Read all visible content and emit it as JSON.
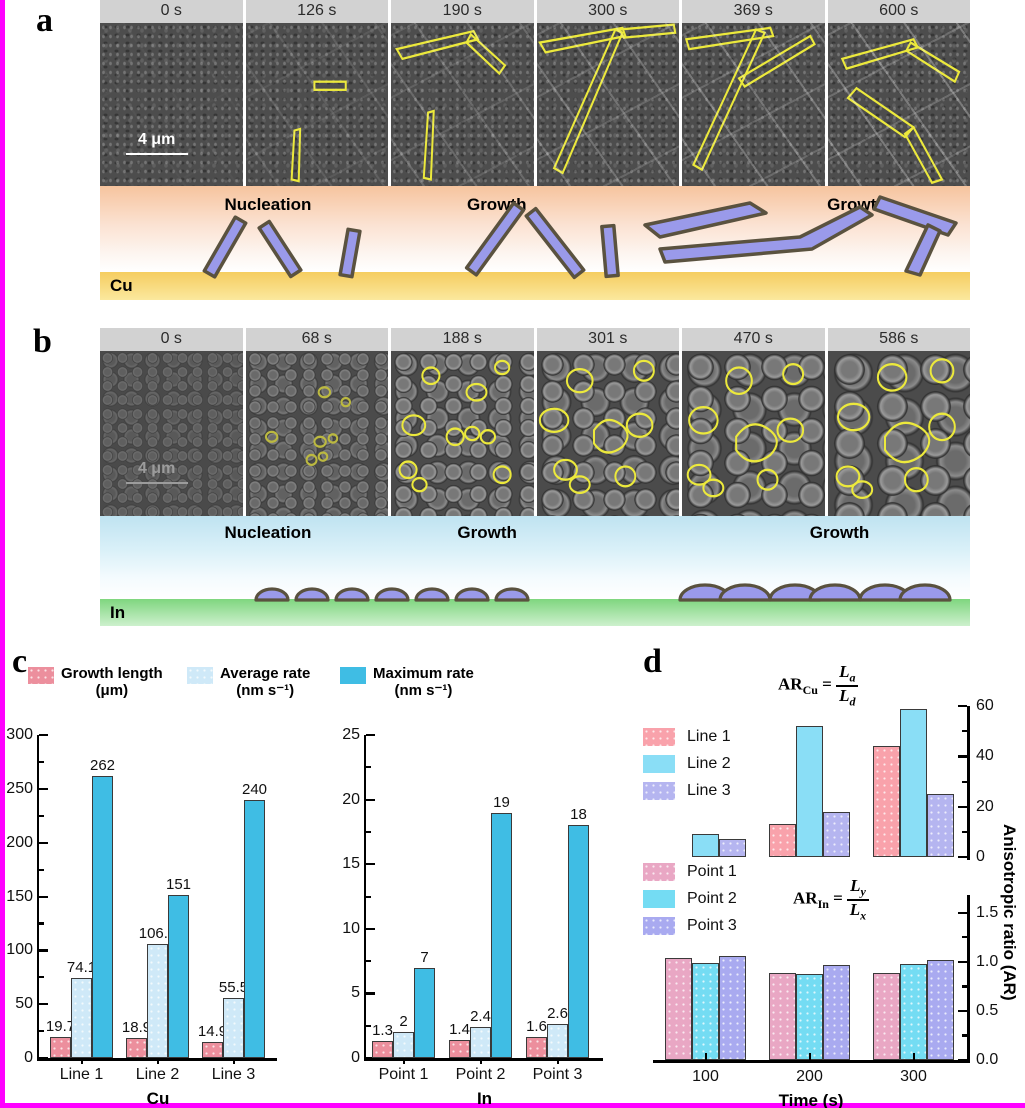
{
  "figure": {
    "border_color": "#ff00ff"
  },
  "panels": {
    "a": {
      "label": "a",
      "times": [
        "0 s",
        "126 s",
        "190 s",
        "300 s",
        "369 s",
        "600 s"
      ],
      "scale_bar": "4 μm",
      "phases": [
        "Nucleation",
        "Growth",
        "Growth"
      ],
      "substrate": "Cu"
    },
    "b": {
      "label": "b",
      "times": [
        "0 s",
        "68 s",
        "188 s",
        "301 s",
        "470 s",
        "586 s"
      ],
      "scale_bar": "4 μm",
      "phases": [
        "Nucleation",
        "Growth",
        "Growth"
      ],
      "substrate": "In"
    },
    "c": {
      "label": "c",
      "legend": [
        {
          "name": "Growth length",
          "unit": "(μm)",
          "color": "#ec8f9d"
        },
        {
          "name": "Average rate",
          "unit": "(nm s⁻¹)",
          "color": "#cfe9f8"
        },
        {
          "name": "Maximum rate",
          "unit": "(nm s⁻¹)",
          "color": "#3fbde4"
        }
      ]
    },
    "d": {
      "label": "d",
      "legend_top": [
        {
          "name": "Line 1",
          "color": "#f9a2ab"
        },
        {
          "name": "Line 2",
          "color": "#8adef6"
        },
        {
          "name": "Line 3",
          "color": "#b5b5f0"
        }
      ],
      "legend_bottom": [
        {
          "name": "Point 1",
          "color": "#e9a7c4"
        },
        {
          "name": "Point 2",
          "color": "#74dcf3"
        },
        {
          "name": "Point 3",
          "color": "#a9aaf0"
        }
      ],
      "formula_top": {
        "lhs": "AR",
        "lhs_sub": "Cu",
        "eq": "=",
        "num": "L",
        "num_sub": "a",
        "den": "L",
        "den_sub": "d"
      },
      "formula_bottom": {
        "lhs": "AR",
        "lhs_sub": "In",
        "eq": "=",
        "num": "L",
        "num_sub": "y",
        "den": "L",
        "den_sub": "x"
      },
      "right_axis_label": "Anisotropic ratio (AR)"
    }
  },
  "chart_data": [
    {
      "id": "c-cu",
      "type": "bar",
      "title": "",
      "categories": [
        "Line 1",
        "Line 2",
        "Line 3"
      ],
      "xlabel": "Cu",
      "ylabel": "",
      "ylim": [
        0,
        300
      ],
      "yticks": [
        0,
        50,
        100,
        150,
        200,
        250,
        300
      ],
      "grid": false,
      "legend_position": "top",
      "value_labels": true,
      "series": [
        {
          "name": "Growth length (μm)",
          "color": "#ec8f9d",
          "texture": "dots",
          "values": [
            19.7,
            18.9,
            14.9
          ]
        },
        {
          "name": "Average rate (nm s⁻¹)",
          "color": "#cfe9f8",
          "texture": "dots",
          "values": [
            74.1,
            106.3,
            55.5
          ]
        },
        {
          "name": "Maximum rate (nm s⁻¹)",
          "color": "#3fbde4",
          "texture": "none",
          "values": [
            262,
            151,
            240
          ]
        }
      ]
    },
    {
      "id": "c-in",
      "type": "bar",
      "title": "",
      "categories": [
        "Point 1",
        "Point 2",
        "Point 3"
      ],
      "xlabel": "In",
      "ylabel": "",
      "ylim": [
        0,
        25
      ],
      "yticks": [
        0,
        5,
        10,
        15,
        20,
        25
      ],
      "grid": false,
      "legend_position": "top",
      "value_labels": true,
      "series": [
        {
          "name": "Growth length (μm)",
          "color": "#ec8f9d",
          "texture": "dots",
          "values": [
            1.3,
            1.4,
            1.6
          ]
        },
        {
          "name": "Average rate (nm s⁻¹)",
          "color": "#cfe9f8",
          "texture": "dots",
          "values": [
            2,
            2.4,
            2.6
          ]
        },
        {
          "name": "Maximum rate (nm s⁻¹)",
          "color": "#3fbde4",
          "texture": "none",
          "values": [
            7,
            19,
            18
          ]
        }
      ]
    },
    {
      "id": "d-cu",
      "type": "bar",
      "title": "AR_Cu = L_a / L_d",
      "categories": [
        "100",
        "200",
        "300"
      ],
      "xlabel": "",
      "ylabel_right": "Anisotropic ratio (AR)",
      "ylim": [
        0,
        60
      ],
      "yticks": [
        0,
        20,
        40,
        60
      ],
      "grid": false,
      "legend_position": "left",
      "value_labels": false,
      "series": [
        {
          "name": "Line 1",
          "color": "#f9a2ab",
          "texture": "dots",
          "values": [
            0,
            13,
            44
          ]
        },
        {
          "name": "Line 2",
          "color": "#8adef6",
          "texture": "none",
          "values": [
            9,
            52,
            59
          ]
        },
        {
          "name": "Line 3",
          "color": "#b5b5f0",
          "texture": "dots",
          "values": [
            7,
            18,
            25
          ]
        }
      ]
    },
    {
      "id": "d-in",
      "type": "bar",
      "title": "AR_In = L_y / L_x",
      "categories": [
        "100",
        "200",
        "300"
      ],
      "xlabel": "Time (s)",
      "ylabel_right": "Anisotropic ratio (AR)",
      "ylim": [
        0,
        1.68
      ],
      "yticks": [
        0.0,
        0.5,
        1.0,
        1.5
      ],
      "grid": false,
      "legend_position": "left",
      "value_labels": false,
      "series": [
        {
          "name": "Point 1",
          "color": "#e9a7c4",
          "texture": "dots",
          "values": [
            1.04,
            0.89,
            0.89
          ]
        },
        {
          "name": "Point 2",
          "color": "#74dcf3",
          "texture": "dots",
          "values": [
            0.99,
            0.88,
            0.98
          ]
        },
        {
          "name": "Point 3",
          "color": "#a9aaf0",
          "texture": "dots",
          "values": [
            1.06,
            0.97,
            1.02
          ]
        }
      ]
    }
  ]
}
